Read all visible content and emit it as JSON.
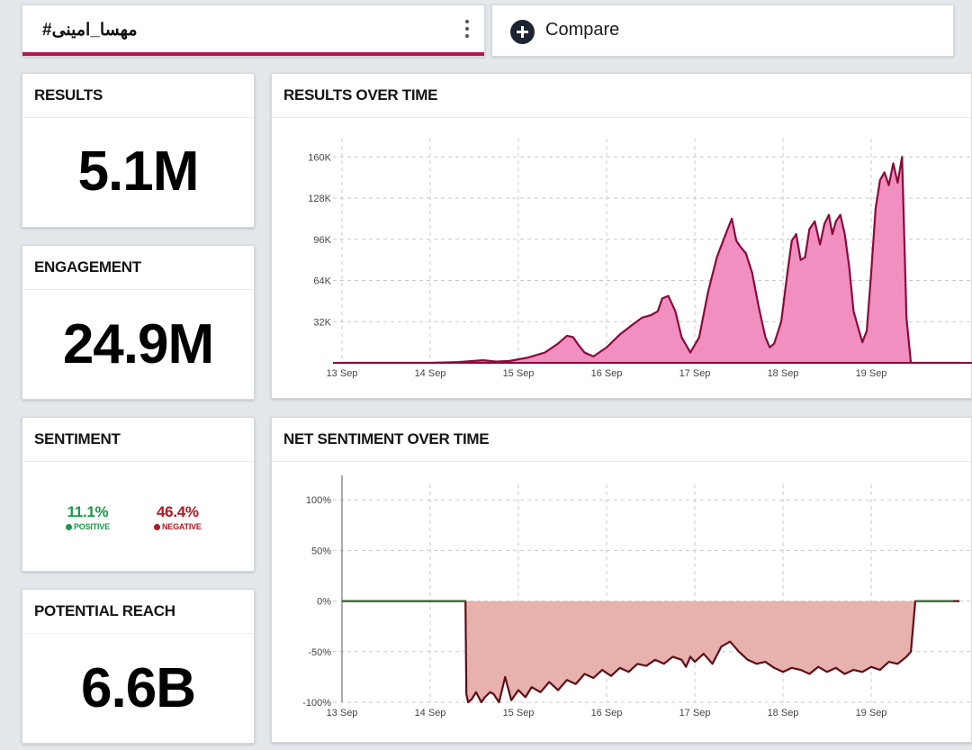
{
  "tabs": {
    "search_query": "#مهسا_امینی",
    "compare_label": "Compare"
  },
  "cards": {
    "results": {
      "title": "RESULTS",
      "value": "5.1M"
    },
    "engagement": {
      "title": "ENGAGEMENT",
      "value": "24.9M"
    },
    "sentiment": {
      "title": "SENTIMENT",
      "positive_value": "11.1%",
      "positive_label": "POSITIVE",
      "positive_color": "#1a9a4a",
      "negative_value": "46.4%",
      "negative_label": "NEGATIVE",
      "negative_color": "#b3161f"
    },
    "reach": {
      "title": "POTENTIAL REACH",
      "value": "6.6B"
    }
  },
  "chart_data": [
    {
      "type": "area",
      "title": "RESULTS OVER TIME",
      "color": "#f08fc0",
      "line_color": "#8a0a3a",
      "x_ticks": [
        "13 Sep",
        "14 Sep",
        "15 Sep",
        "16 Sep",
        "17 Sep",
        "18 Sep",
        "19 Sep"
      ],
      "y_ticks": [
        "32K",
        "64K",
        "96K",
        "128K",
        "160K"
      ],
      "y_tick_values": [
        32000,
        64000,
        96000,
        128000,
        160000
      ],
      "ylim": [
        0,
        170000
      ],
      "grid": true,
      "x": [
        13.0,
        13.5,
        14.0,
        14.3,
        14.6,
        14.75,
        14.9,
        15.1,
        15.3,
        15.45,
        15.55,
        15.62,
        15.68,
        15.75,
        15.85,
        16.0,
        16.15,
        16.3,
        16.4,
        16.5,
        16.58,
        16.63,
        16.7,
        16.78,
        16.85,
        16.95,
        17.05,
        17.15,
        17.25,
        17.35,
        17.42,
        17.47,
        17.52,
        17.58,
        17.65,
        17.72,
        17.8,
        17.85,
        17.9,
        17.98,
        18.05,
        18.1,
        18.15,
        18.2,
        18.25,
        18.3,
        18.36,
        18.42,
        18.47,
        18.52,
        18.56,
        18.6,
        18.65,
        18.7,
        18.75,
        18.8,
        18.9,
        18.95,
        19.0,
        19.05,
        19.1,
        19.15,
        19.2,
        19.25,
        19.3,
        19.35,
        19.4,
        19.45,
        19.5,
        19.55,
        19.8,
        20.0
      ],
      "values": [
        0,
        0,
        0,
        500,
        2000,
        1000,
        1500,
        4000,
        8000,
        15000,
        21000,
        20000,
        14000,
        8000,
        5000,
        12000,
        22000,
        30000,
        35000,
        37000,
        40000,
        50000,
        52000,
        40000,
        20000,
        8000,
        20000,
        55000,
        82000,
        100000,
        112000,
        95000,
        90000,
        85000,
        70000,
        45000,
        20000,
        12000,
        15000,
        32000,
        70000,
        95000,
        100000,
        80000,
        82000,
        104000,
        110000,
        92000,
        108000,
        115000,
        100000,
        110000,
        115000,
        100000,
        75000,
        40000,
        16000,
        25000,
        70000,
        120000,
        142000,
        148000,
        138000,
        155000,
        140000,
        160000,
        35000,
        0,
        0,
        0,
        0,
        0
      ]
    },
    {
      "type": "area",
      "title": "NET SENTIMENT OVER TIME",
      "color": "#e7b1ad",
      "line_color": "#5c0f16",
      "zero_line_color": "#2f6f2f",
      "x_ticks": [
        "13 Sep",
        "14 Sep",
        "15 Sep",
        "16 Sep",
        "17 Sep",
        "18 Sep",
        "19 Sep"
      ],
      "y_ticks": [
        "-100%",
        "-50%",
        "0%",
        "50%",
        "100%"
      ],
      "y_tick_values": [
        -100,
        -50,
        0,
        50,
        100
      ],
      "ylim": [
        -100,
        110
      ],
      "grid": true,
      "x": [
        13.0,
        14.0,
        14.4,
        14.41,
        14.43,
        14.47,
        14.52,
        14.58,
        14.62,
        14.68,
        14.72,
        14.78,
        14.85,
        14.92,
        15.0,
        15.08,
        15.15,
        15.25,
        15.35,
        15.45,
        15.55,
        15.65,
        15.75,
        15.85,
        15.95,
        16.05,
        16.15,
        16.25,
        16.35,
        16.45,
        16.55,
        16.65,
        16.75,
        16.85,
        16.9,
        16.95,
        17.0,
        17.1,
        17.2,
        17.3,
        17.4,
        17.5,
        17.6,
        17.7,
        17.8,
        17.9,
        18.0,
        18.1,
        18.2,
        18.3,
        18.4,
        18.5,
        18.6,
        18.7,
        18.8,
        18.9,
        19.0,
        19.1,
        19.2,
        19.3,
        19.4,
        19.45,
        19.48,
        19.5,
        19.8,
        20.0
      ],
      "values": [
        0,
        0,
        0,
        -92,
        -100,
        -97,
        -90,
        -100,
        -95,
        -90,
        -92,
        -100,
        -75,
        -98,
        -88,
        -95,
        -85,
        -90,
        -80,
        -88,
        -78,
        -82,
        -72,
        -76,
        -68,
        -74,
        -66,
        -70,
        -62,
        -64,
        -58,
        -62,
        -55,
        -58,
        -65,
        -55,
        -60,
        -52,
        -62,
        -45,
        -40,
        -50,
        -58,
        -62,
        -60,
        -66,
        -70,
        -66,
        -68,
        -72,
        -65,
        -70,
        -66,
        -72,
        -68,
        -70,
        -65,
        -68,
        -60,
        -62,
        -55,
        -50,
        -20,
        0,
        0,
        0
      ]
    }
  ]
}
